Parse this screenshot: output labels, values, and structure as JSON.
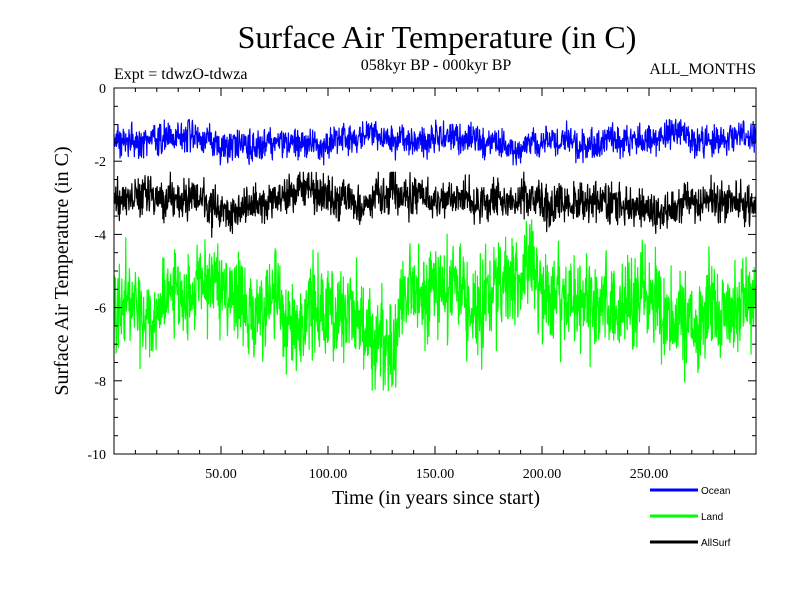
{
  "chart_data": {
    "type": "line",
    "title": "Surface Air Temperature (in C)",
    "subtitle": "058kyr BP - 000kyr BP",
    "experiment": "Expt = tdwzO-tdwza",
    "period": "ALL_MONTHS",
    "xlabel": "Time (in years since start)",
    "ylabel": "Surface Air Temperature (in C)",
    "xlim": [
      0,
      300
    ],
    "ylim": [
      -10,
      0
    ],
    "x_ticks": [
      50,
      100,
      150,
      200,
      250
    ],
    "x_tick_labels": [
      "50.00",
      "100.00",
      "150.00",
      "200.00",
      "250.00"
    ],
    "y_ticks": [
      0,
      -2,
      -4,
      -6,
      -8,
      -10
    ],
    "y_tick_labels": [
      "0",
      "-2",
      "-4",
      "-6",
      "-8",
      "-10"
    ],
    "grid": false,
    "legend_position": "bottom-right",
    "series": [
      {
        "name": "Ocean",
        "label": "Ocean",
        "color": "#0000ff",
        "mean": -1.45,
        "amplitude": 0.35,
        "min": -2.1,
        "max": -0.6
      },
      {
        "name": "Land",
        "label": "Land",
        "color": "#00ff00",
        "mean": -6.0,
        "amplitude": 1.1,
        "min": -8.8,
        "max": -3.6
      },
      {
        "name": "AllSurf",
        "label": "AllSurf",
        "color": "#000000",
        "mean": -3.1,
        "amplitude": 0.45,
        "min": -4.1,
        "max": -2.3
      }
    ]
  }
}
